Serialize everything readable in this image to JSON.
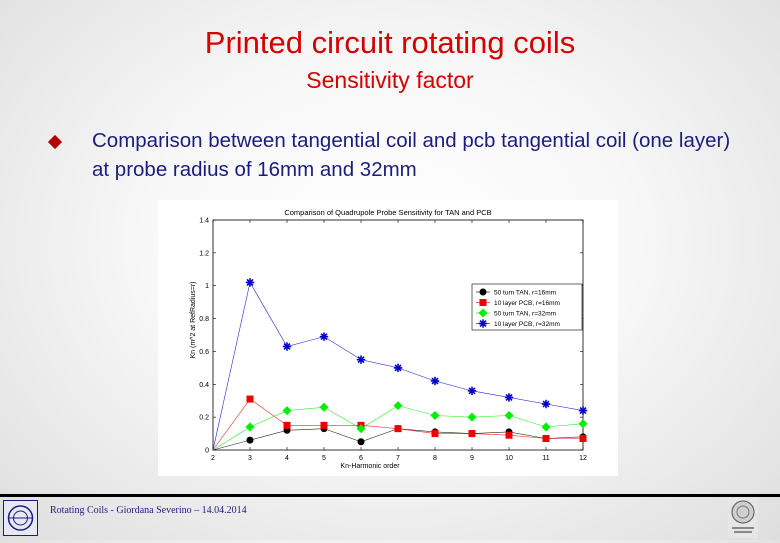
{
  "slide": {
    "title": "Printed circuit rotating coils",
    "subtitle": "Sensitivity factor",
    "bullet": "Comparison between tangential coil and pcb tangential coil (one layer) at probe radius of 16mm and 32mm",
    "footer": "Rotating Coils - Giordana Severino – 14.04.2014"
  },
  "chart_data": {
    "type": "line",
    "title": "Comparison of Quadrupole Probe Sensitivity for TAN and PCB",
    "xlabel": "Kn-Harmonic order",
    "ylabel": "Kn (m^2 at RefRadius=r)",
    "xlim": [
      2,
      12
    ],
    "ylim": [
      0,
      1.4
    ],
    "x_ticks": [
      "2",
      "3",
      "4",
      "5",
      "6",
      "7",
      "8",
      "9",
      "10",
      "11",
      "12"
    ],
    "y_ticks": [
      "0",
      "0.2",
      "0.4",
      "0.6",
      "0.8",
      "1",
      "1.2",
      "1.4"
    ],
    "legend_position": "right",
    "grid": false,
    "series": [
      {
        "name": "50 turn TAN, r=16mm",
        "color": "#000000",
        "marker": "circle",
        "x": [
          2,
          3,
          4,
          5,
          6,
          7,
          8,
          9,
          10,
          11,
          12
        ],
        "y": [
          0.0,
          0.06,
          0.12,
          0.13,
          0.05,
          0.13,
          0.11,
          0.1,
          0.11,
          0.07,
          0.08
        ]
      },
      {
        "name": "10 layer PCB, r=16mm",
        "color": "#ee0000",
        "marker": "square",
        "x": [
          2,
          3,
          4,
          5,
          6,
          7,
          8,
          9,
          10,
          11,
          12
        ],
        "y": [
          0.0,
          0.31,
          0.15,
          0.15,
          0.15,
          0.13,
          0.1,
          0.1,
          0.09,
          0.07,
          0.07
        ]
      },
      {
        "name": "50 turn TAN, r=32mm",
        "color": "#00ee00",
        "marker": "diamond",
        "x": [
          2,
          3,
          4,
          5,
          6,
          7,
          8,
          9,
          10,
          11,
          12
        ],
        "y": [
          0.0,
          0.14,
          0.24,
          0.26,
          0.13,
          0.27,
          0.21,
          0.2,
          0.21,
          0.14,
          0.16
        ]
      },
      {
        "name": "10 layer PCB, r=32mm",
        "color": "#0000cc",
        "marker": "star",
        "x": [
          2,
          3,
          4,
          5,
          6,
          7,
          8,
          9,
          10,
          11,
          12
        ],
        "y": [
          0.0,
          1.02,
          0.63,
          0.69,
          0.55,
          0.5,
          0.42,
          0.36,
          0.32,
          0.28,
          0.24
        ]
      }
    ]
  }
}
